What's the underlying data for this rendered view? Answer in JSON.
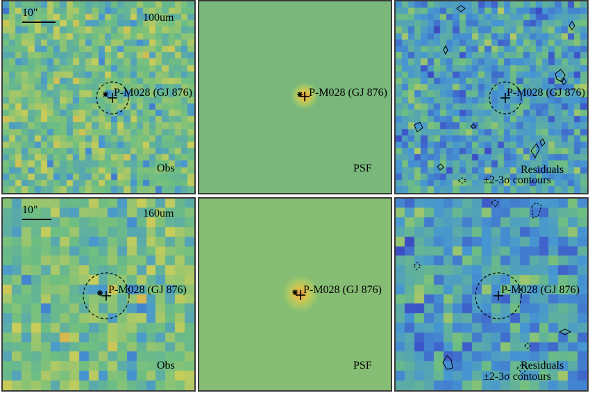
{
  "panels": {
    "row1": {
      "obs": {
        "scale": "10\"",
        "band": "100um",
        "source_label": "P-M028 (GJ 876)",
        "kind": "Obs"
      },
      "psf": {
        "source_label": "P-M028 (GJ 876)",
        "kind": "PSF"
      },
      "res": {
        "source_label": "P-M028 (GJ 876)",
        "kind": "Residuals",
        "contours": "±2-3σ contours"
      }
    },
    "row2": {
      "obs": {
        "scale": "10\"",
        "band": "160um",
        "source_label": "P-M028 (GJ 876)",
        "kind": "Obs"
      },
      "psf": {
        "source_label": "P-M028 (GJ 876)",
        "kind": "PSF"
      },
      "res": {
        "source_label": "P-M028 (GJ 876)",
        "kind": "Residuals",
        "contours": "±2-3σ contours"
      }
    }
  },
  "colors": {
    "colormap_low": "#5a2a8a",
    "colormap_mid": "#7fbf7a",
    "colormap_high": "#e0402a",
    "psf_bg": "#7cbb7a"
  }
}
